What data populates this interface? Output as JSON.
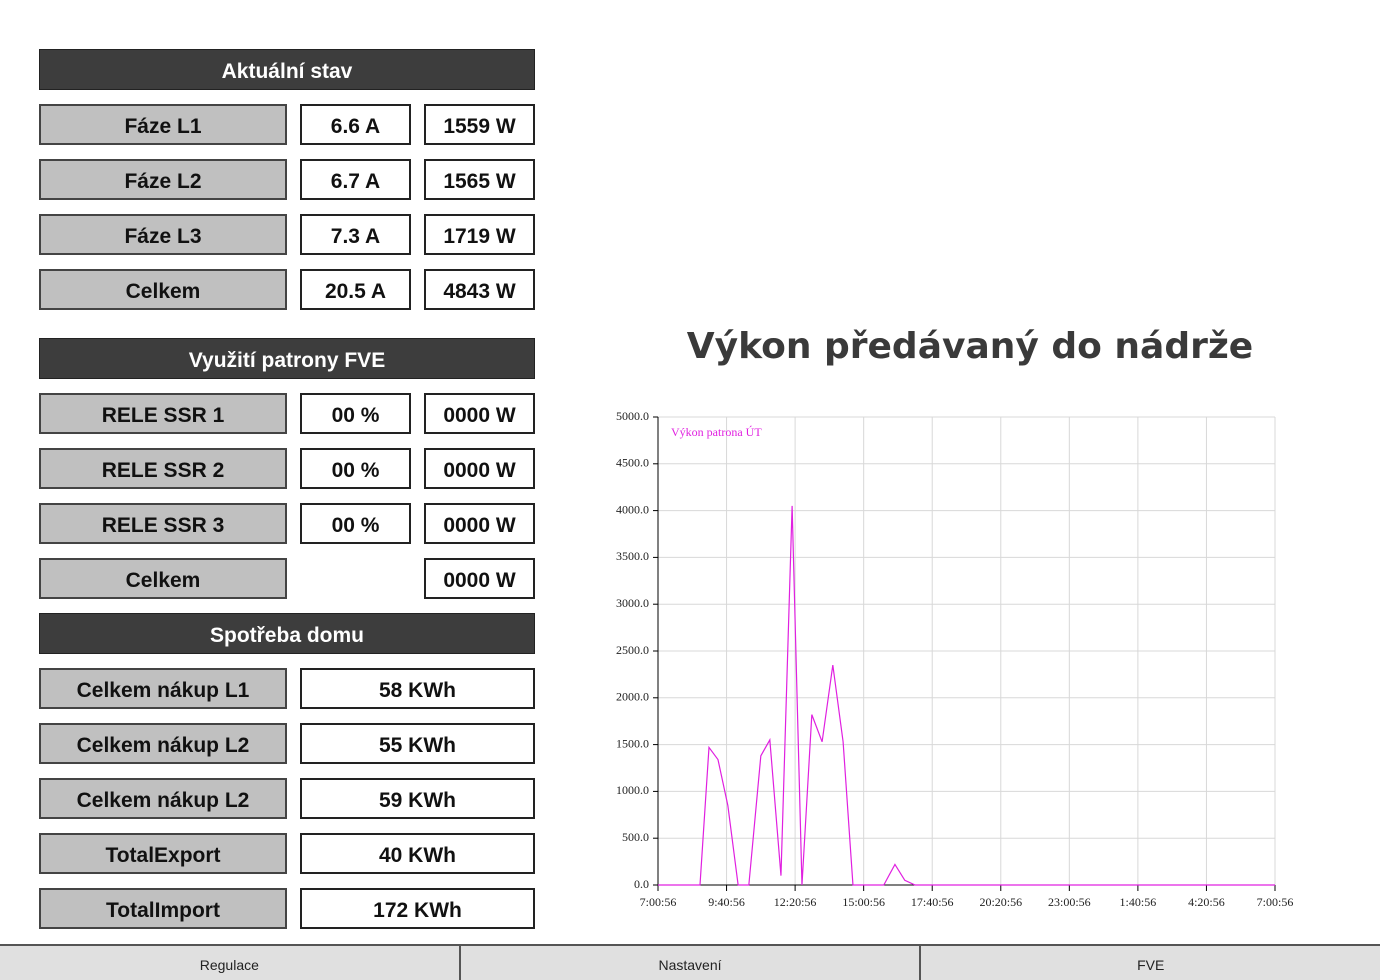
{
  "panels": [
    {
      "title": "Aktuální stav",
      "rows": [
        {
          "label": "Fáze L1",
          "col1": "6.6 A",
          "col2": "1559 W"
        },
        {
          "label": "Fáze L2",
          "col1": "6.7 A",
          "col2": "1565 W"
        },
        {
          "label": "Fáze L3",
          "col1": "7.3 A",
          "col2": "1719 W"
        },
        {
          "label": "Celkem",
          "col1": "20.5 A",
          "col2": "4843 W"
        }
      ]
    },
    {
      "title": "Využití patrony FVE",
      "rows": [
        {
          "label": "RELE SSR 1",
          "col1": "00 %",
          "col2": "0000 W"
        },
        {
          "label": "RELE SSR 2",
          "col1": "00 %",
          "col2": "0000 W"
        },
        {
          "label": "RELE SSR 3",
          "col1": "00 %",
          "col2": "0000 W"
        },
        {
          "label": "Celkem",
          "col2": "0000 W"
        }
      ]
    },
    {
      "title": "Spotřeba domu",
      "rows": [
        {
          "label": "Celkem nákup L1",
          "wide": "58 KWh"
        },
        {
          "label": "Celkem nákup L2",
          "wide": "55 KWh"
        },
        {
          "label": "Celkem nákup L2",
          "wide": "59 KWh"
        },
        {
          "label": "TotalExport",
          "wide": "40 KWh"
        },
        {
          "label": "TotalImport",
          "wide": "172 KWh"
        }
      ]
    }
  ],
  "chart_data": {
    "type": "line",
    "title": "Výkon předávaný do nádrže",
    "series": [
      {
        "name": "Výkon patrona ÚT",
        "color": "#e020e0",
        "x": [
          0,
          98,
          119,
          140,
          163,
          187,
          212,
          240,
          261,
          287,
          313,
          336,
          359,
          383,
          408,
          432,
          455,
          527,
          553,
          576,
          600,
          1440
        ],
        "values": [
          0,
          0,
          1470,
          1340,
          850,
          0,
          0,
          1380,
          1550,
          100,
          4050,
          0,
          1820,
          1530,
          2350,
          1530,
          0,
          0,
          220,
          50,
          0,
          0
        ]
      }
    ],
    "xlim": [
      0,
      1440
    ],
    "xticks": [
      {
        "value": 0,
        "label": "7:00:56"
      },
      {
        "value": 160,
        "label": "9:40:56"
      },
      {
        "value": 320,
        "label": "12:20:56"
      },
      {
        "value": 480,
        "label": "15:00:56"
      },
      {
        "value": 640,
        "label": "17:40:56"
      },
      {
        "value": 800,
        "label": "20:20:56"
      },
      {
        "value": 960,
        "label": "23:00:56"
      },
      {
        "value": 1120,
        "label": "1:40:56"
      },
      {
        "value": 1280,
        "label": "4:20:56"
      },
      {
        "value": 1440,
        "label": "7:00:56"
      }
    ],
    "ylim": [
      0,
      5000
    ],
    "yticks": [
      {
        "value": 0,
        "label": "0.0"
      },
      {
        "value": 500,
        "label": "500.0"
      },
      {
        "value": 1000,
        "label": "1000.0"
      },
      {
        "value": 1500,
        "label": "1500.0"
      },
      {
        "value": 2000,
        "label": "2000.0"
      },
      {
        "value": 2500,
        "label": "2500.0"
      },
      {
        "value": 3000,
        "label": "3000.0"
      },
      {
        "value": 3500,
        "label": "3500.0"
      },
      {
        "value": 4000,
        "label": "4000.0"
      },
      {
        "value": 4500,
        "label": "4500.0"
      },
      {
        "value": 5000,
        "label": "5000.0"
      }
    ],
    "grid": true
  },
  "nav": [
    "Regulace",
    "Nastavení",
    "FVE"
  ]
}
